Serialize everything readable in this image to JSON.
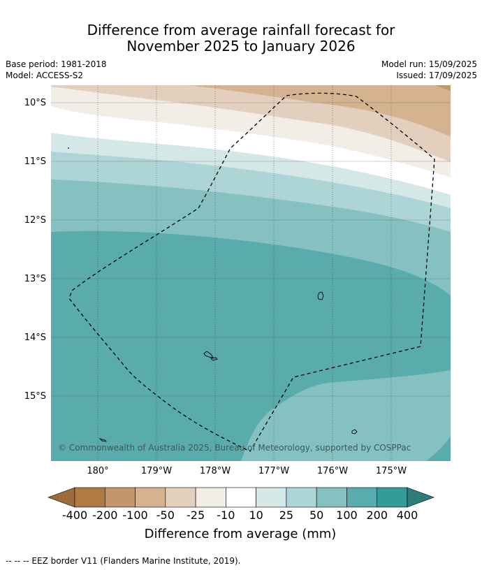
{
  "title_line1": "Difference from average rainfall forecast for",
  "title_line2": "November 2025 to January 2026",
  "meta": {
    "base_period": "Base period: 1981-2018",
    "model": "Model: ACCESS-S2",
    "model_run": "Model run: 15/09/2025",
    "issued": "Issued: 17/09/2025"
  },
  "map": {
    "lat_labels": [
      "10°S",
      "11°S",
      "12°S",
      "13°S",
      "14°S",
      "15°S"
    ],
    "lon_labels": [
      "180°",
      "179°W",
      "178°W",
      "177°W",
      "176°W",
      "175°W"
    ],
    "copyright": "© Commonwealth of Australia 2025, Bureau of Meteorology, supported by COSPPac"
  },
  "legend": {
    "title": "Difference from average (mm)",
    "ticks": [
      "-400",
      "-200",
      "-100",
      "-50",
      "-25",
      "-10",
      "10",
      "25",
      "50",
      "100",
      "200",
      "400"
    ],
    "colors": [
      "#9c6a3b",
      "#b07a44",
      "#c4966a",
      "#d5b290",
      "#e3cfbd",
      "#f3ede7",
      "#ffffff",
      "#d5e8e8",
      "#aed5d5",
      "#84c1c0",
      "#5aabab",
      "#339c9b",
      "#2e7c7c"
    ]
  },
  "footer": "--  --  -- EEZ border V11 (Flanders Marine Institute, 2019)."
}
